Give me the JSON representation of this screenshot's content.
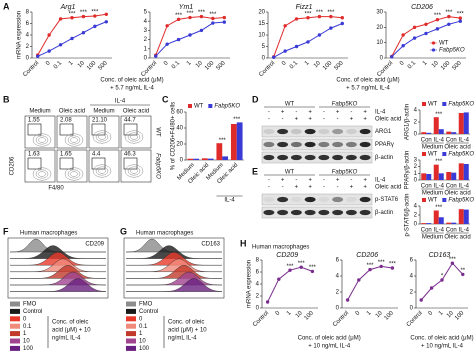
{
  "panel_labels": [
    "A",
    "B",
    "C",
    "D",
    "E",
    "F",
    "G",
    "H"
  ],
  "chart_data": [
    {
      "type": "line",
      "title": "Arg1",
      "ylabel": "mRNA expression",
      "xlabel": [
        "Conc. of oleic acid (μM)",
        "+ 5.7 ng/mL IL-4"
      ],
      "categories": [
        "Control",
        "0",
        "0.1",
        "1",
        "10",
        "100",
        "500"
      ],
      "series": [
        {
          "color": "#e02b2b",
          "values": [
            0.5,
            4,
            6.8,
            7,
            7.2,
            7.3,
            7.6
          ]
        },
        {
          "color": "#3a3ad6",
          "values": [
            0.3,
            1.2,
            2.3,
            3.4,
            4.4,
            5.5,
            6.3
          ]
        }
      ],
      "significance": [
        null,
        null,
        null,
        "***",
        "***",
        "***",
        null
      ],
      "ylim": [
        0,
        8
      ],
      "yticks": [
        0,
        2,
        4,
        6,
        8
      ]
    },
    {
      "type": "line",
      "title": "Ym1",
      "categories": [
        "Control",
        "0",
        "0.1",
        "1",
        "10",
        "100",
        "500"
      ],
      "series": [
        {
          "color": "#e02b2b",
          "values": [
            0.3,
            3.5,
            4.2,
            4.4,
            4.5,
            4.3,
            4.4
          ]
        },
        {
          "color": "#3a3ad6",
          "values": [
            0.2,
            1.5,
            2,
            2.5,
            3,
            3.8,
            3.9
          ]
        }
      ],
      "significance": [
        null,
        null,
        "***",
        "***",
        "***",
        "***",
        null
      ],
      "ylim": [
        0,
        5
      ],
      "yticks": [
        0,
        1,
        2,
        3,
        4,
        5
      ]
    },
    {
      "type": "line",
      "title": "Fizz1",
      "xlabel": [
        "Conc. of oleic acid (μM)",
        "+ 5.7 ng/mL IL-4"
      ],
      "categories": [
        "Control",
        "0",
        "0.1",
        "1",
        "10",
        "100",
        "500"
      ],
      "series": [
        {
          "color": "#e02b2b",
          "values": [
            0.5,
            14,
            17,
            17.5,
            18,
            18,
            17.5
          ]
        },
        {
          "color": "#3a3ad6",
          "values": [
            0.3,
            3,
            5,
            7,
            10,
            13,
            15
          ]
        }
      ],
      "significance": [
        null,
        null,
        null,
        "***",
        "***",
        "***",
        null
      ],
      "ylim": [
        0,
        20
      ],
      "yticks": [
        0,
        5,
        10,
        15,
        20
      ]
    },
    {
      "type": "line",
      "title": "CD206",
      "legend": "lower right",
      "categories": [
        "Control",
        "0",
        "0.1",
        "1",
        "10",
        "100",
        "500"
      ],
      "series": [
        {
          "name": "WT",
          "color": "#e02b2b",
          "values": [
            1,
            15,
            20,
            22,
            25,
            27,
            26
          ]
        },
        {
          "name": "Fabp5KO",
          "color": "#3a3ad6",
          "values": [
            0.8,
            8,
            13,
            16,
            19,
            22,
            24
          ]
        }
      ],
      "significance": [
        null,
        null,
        null,
        null,
        "***",
        "***",
        "***"
      ],
      "ylim": [
        0,
        30
      ],
      "yticks": [
        0,
        10,
        20,
        30
      ]
    },
    {
      "type": "bar",
      "ylabel": "% of CD206+F4/80+ cells",
      "legend": "top",
      "categories": [
        "Medium",
        "Oleic acid",
        "Medium",
        "Oleic acid"
      ],
      "groups": [
        null,
        "IL-4"
      ],
      "series": [
        {
          "name": "WT",
          "color": "#e02b2b",
          "values": [
            1.6,
            2.1,
            21,
            45
          ]
        },
        {
          "name": "Fabp5KO",
          "color": "#3a3ad6",
          "values": [
            1.6,
            1.7,
            4.5,
            47
          ]
        }
      ],
      "significance": [
        null,
        null,
        "***",
        "***"
      ],
      "ylim": [
        0,
        60
      ],
      "yticks": [
        0,
        20,
        40,
        60
      ]
    },
    {
      "type": "bar",
      "ylabel": "ARG1/β-actin",
      "legend": "top",
      "categories": [
        "Con",
        "IL-4",
        "Con",
        "IL-4"
      ],
      "groups": [
        "Medium",
        "Oleic acid"
      ],
      "series": [
        {
          "name": "WT",
          "color": "#e02b2b",
          "values": [
            0.3,
            2.8,
            0.4,
            3.5
          ]
        },
        {
          "name": "Fabp5KO",
          "color": "#3a3ad6",
          "values": [
            0.2,
            0.8,
            0.3,
            3.6
          ]
        }
      ],
      "significance": [
        null,
        "***",
        null,
        null
      ],
      "ylim": [
        0,
        4
      ],
      "yticks": [
        0,
        2,
        4
      ]
    },
    {
      "type": "bar",
      "ylabel": "PPARγ/β-actin",
      "legend": "top",
      "categories": [
        "Con",
        "IL-4",
        "Con",
        "IL-4"
      ],
      "groups": [
        "Medium",
        "Oleic acid"
      ],
      "series": [
        {
          "name": "WT",
          "color": "#e02b2b",
          "values": [
            1,
            2.3,
            1.2,
            2.5
          ]
        },
        {
          "name": "Fabp5KO",
          "color": "#3a3ad6",
          "values": [
            0.9,
            1,
            1.1,
            2.4
          ]
        }
      ],
      "significance": [
        null,
        "***",
        null,
        null
      ],
      "ylim": [
        0,
        3
      ],
      "yticks": [
        0,
        1,
        2,
        3
      ]
    },
    {
      "type": "bar",
      "ylabel": "p-STAT6/β-actin",
      "legend": "top",
      "categories": [
        "Con",
        "IL-4",
        "Con",
        "IL-4"
      ],
      "groups": [
        "Medium",
        "Oleic acid"
      ],
      "series": [
        {
          "name": "WT",
          "color": "#e02b2b",
          "values": [
            0.2,
            3,
            0.3,
            3.3
          ]
        },
        {
          "name": "Fabp5KO",
          "color": "#3a3ad6",
          "values": [
            0.2,
            1.5,
            0.3,
            3.2
          ]
        }
      ],
      "significance": [
        null,
        "***",
        null,
        null
      ],
      "ylim": [
        0,
        4
      ],
      "yticks": [
        0,
        2,
        4
      ]
    },
    {
      "type": "line",
      "title": "CD209",
      "ylabel": "mRNA expression",
      "xlabel": [
        "Conc. of oleic acid (μM)",
        "+ 10 ng/mL IL-4"
      ],
      "categories": [
        "Control",
        "0",
        "1",
        "10",
        "100"
      ],
      "series": [
        {
          "color": "#7b2d8e",
          "values": [
            1,
            4.8,
            6.3,
            6.8,
            6.1
          ]
        }
      ],
      "significance": [
        null,
        null,
        "***",
        "***",
        "***"
      ],
      "ylim": [
        0,
        8
      ],
      "yticks": [
        0,
        2,
        4,
        6,
        8
      ]
    },
    {
      "type": "line",
      "title": "CD206",
      "categories": [
        "Control",
        "0",
        "1",
        "10",
        "100"
      ],
      "series": [
        {
          "color": "#7b2d8e",
          "values": [
            1,
            3.5,
            4.8,
            5.2,
            5
          ]
        }
      ],
      "significance": [
        null,
        null,
        "***",
        "***",
        "***"
      ],
      "ylim": [
        0,
        6
      ],
      "yticks": [
        0,
        2,
        4,
        6
      ]
    },
    {
      "type": "line",
      "title": "CD163",
      "xlabel": [
        "Conc. of oleic acid (μM)",
        "+ 10 ng/mL IL-4"
      ],
      "categories": [
        "Control",
        "0",
        "1",
        "10",
        "100"
      ],
      "series": [
        {
          "color": "#7b2d8e",
          "values": [
            1,
            2.5,
            3.5,
            5.6,
            4.2
          ]
        }
      ],
      "significance": [
        null,
        null,
        "*",
        "***",
        "**"
      ],
      "ylim": [
        0,
        6
      ],
      "yticks": [
        0,
        2,
        4,
        6
      ]
    }
  ],
  "flow_b": {
    "group_label": "IL-4",
    "columns": [
      "Medium",
      "Oleic acid",
      "Medium",
      "Oleic acid"
    ],
    "rows": [
      {
        "label": "WT",
        "values": [
          "1.55",
          "2.08",
          "21.10",
          "44.7"
        ]
      },
      {
        "label": "Fabp5KO",
        "values": [
          "1.63",
          "1.65",
          "4.4",
          "46.3"
        ]
      }
    ],
    "y_axis": "CD206",
    "x_axis": "F4/80"
  },
  "blot_d": {
    "genotypes": [
      "WT",
      "Fabp5KO"
    ],
    "treatments": [
      {
        "name": "IL-4",
        "signs": [
          "-",
          "+",
          "-",
          "+",
          "-",
          "+",
          "-",
          "+"
        ]
      },
      {
        "name": "Oleic acid",
        "signs": [
          "-",
          "-",
          "+",
          "+",
          "-",
          "-",
          "+",
          "+"
        ]
      }
    ],
    "bands": [
      "ARG1",
      "PPARγ",
      "β-actin"
    ]
  },
  "blot_e": {
    "genotypes": [
      "WT",
      "Fabp5KO"
    ],
    "treatments": [
      {
        "name": "IL-4",
        "signs": [
          "-",
          "+",
          "-",
          "+",
          "-",
          "+",
          "-",
          "+"
        ]
      },
      {
        "name": "Oleic acid",
        "signs": [
          "-",
          "-",
          "+",
          "+",
          "-",
          "-",
          "+",
          "+"
        ]
      }
    ],
    "bands": [
      "p-STAT6",
      "β-actin"
    ]
  },
  "histogram_f": {
    "title": "Human macrophages",
    "marker": "CD209",
    "legend": [
      {
        "name": "FMO",
        "color": "#8c8c8c"
      },
      {
        "name": "Control",
        "color": "#1a1a1a"
      },
      {
        "name": "0",
        "color": "#e8392a"
      },
      {
        "name": "0.1",
        "color": "#f08a7a"
      },
      {
        "name": "1",
        "color": "#c0392b"
      },
      {
        "name": "10",
        "color": "#a0448f"
      },
      {
        "name": "100",
        "color": "#6a2080"
      }
    ],
    "caption": [
      "Conc. of oleic",
      "acid (μM) + 10",
      "ng/mL IL-4"
    ]
  },
  "histogram_g": {
    "title": "Human macrophages",
    "marker": "CD163",
    "legend": [
      {
        "name": "FMO",
        "color": "#8c8c8c"
      },
      {
        "name": "Control",
        "color": "#1a1a1a"
      },
      {
        "name": "0",
        "color": "#e8392a"
      },
      {
        "name": "0.1",
        "color": "#f08a7a"
      },
      {
        "name": "1",
        "color": "#c0392b"
      },
      {
        "name": "10",
        "color": "#a0448f"
      },
      {
        "name": "100",
        "color": "#6a2080"
      }
    ],
    "caption": [
      "Conc. of oleic",
      "acid (μM) + 10",
      "ng/mL IL-4"
    ]
  },
  "panel_h": {
    "title": "Human macrophages"
  }
}
